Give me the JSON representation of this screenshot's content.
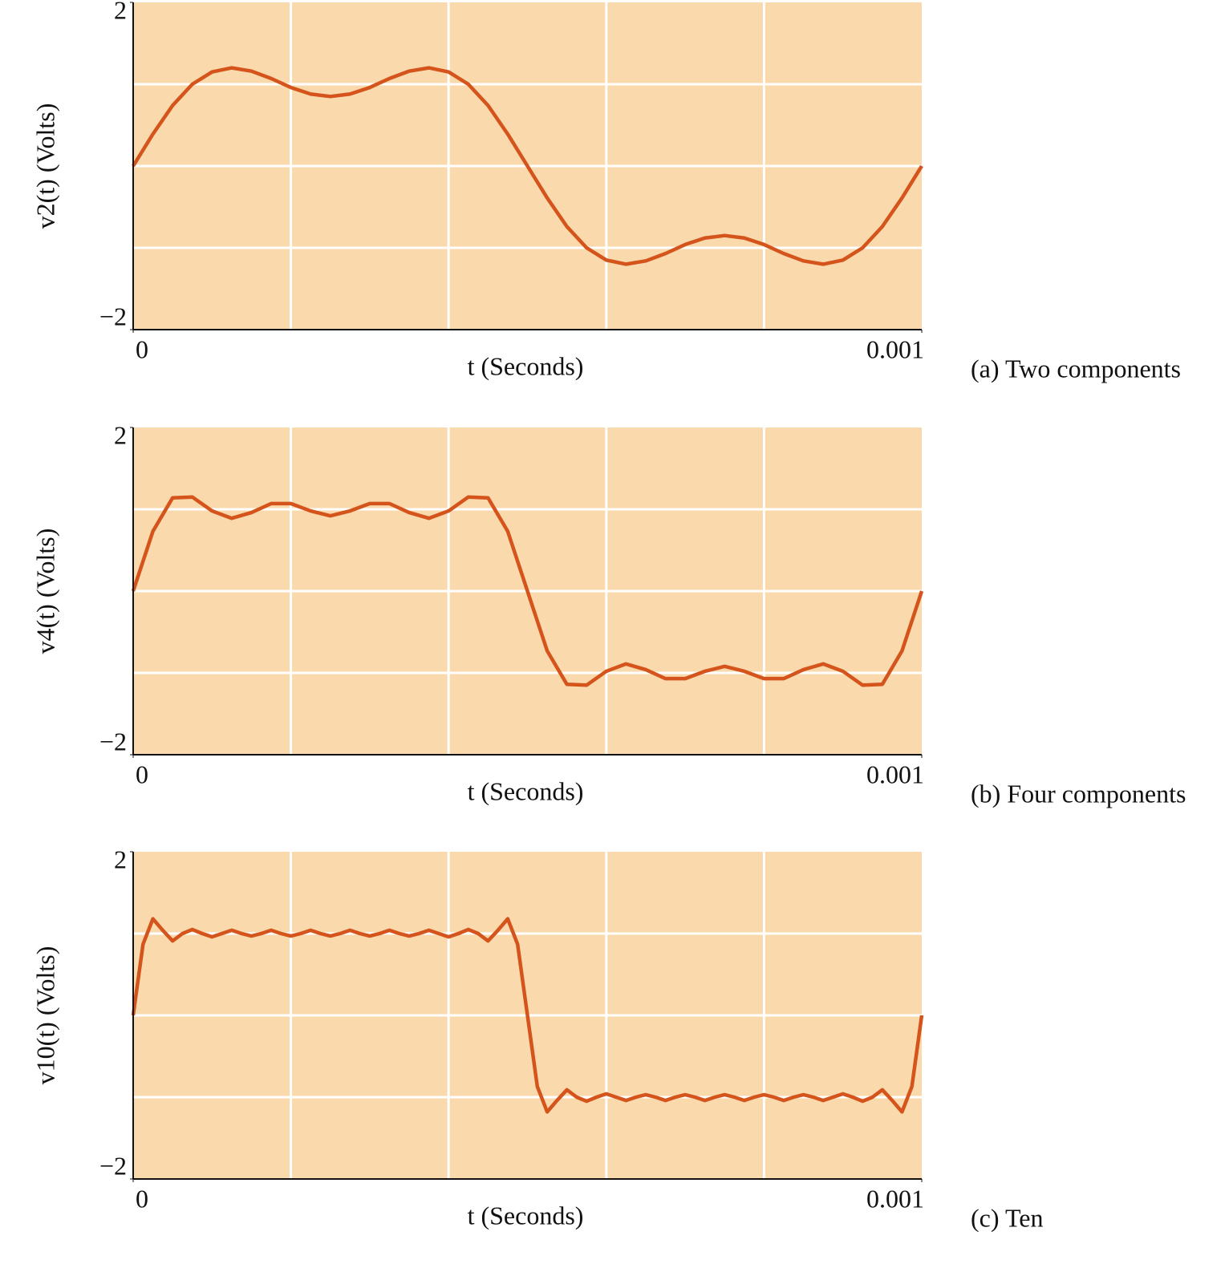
{
  "chart_data": [
    {
      "type": "line",
      "ylabel": "v2(t) (Volts)",
      "xlabel": "t (Seconds)",
      "caption": "(a) Two components",
      "xlim": [
        0,
        0.001
      ],
      "ylim": [
        -2,
        2
      ],
      "xticks": [
        0,
        0.001
      ],
      "yticks": [
        {
          "value": -2,
          "label": "−2"
        },
        2
      ],
      "xgrid": [
        0.0002,
        0.0004,
        0.0006,
        0.0008
      ],
      "ygrid": [
        -1,
        0,
        1
      ],
      "grid": true,
      "series": [
        {
          "color": "#d4541c",
          "x": [
            0,
            2.5e-05,
            5e-05,
            7.5e-05,
            0.0001,
            0.000125,
            0.00015,
            0.000175,
            0.0002,
            0.000225,
            0.00025,
            0.000275,
            0.0003,
            0.000325,
            0.00035,
            0.000375,
            0.0004,
            0.000425,
            0.00045,
            0.000475,
            0.0005,
            0.000525,
            0.00055,
            0.000575,
            0.0006,
            0.000625,
            0.00065,
            0.000675,
            0.0007,
            0.000725,
            0.00075,
            0.000775,
            0.0008,
            0.000825,
            0.00085,
            0.000875,
            0.0009,
            0.000925,
            0.00095,
            0.000975,
            0.001
          ],
          "values": [
            0,
            0.39,
            0.74,
            1.0,
            1.15,
            1.2,
            1.16,
            1.07,
            0.96,
            0.88,
            0.85,
            0.88,
            0.96,
            1.07,
            1.16,
            1.2,
            1.15,
            1.0,
            0.74,
            0.39,
            0,
            -0.39,
            -0.74,
            -1.0,
            -1.15,
            -1.2,
            -1.16,
            -1.07,
            -0.96,
            -0.88,
            -0.85,
            -0.88,
            -0.96,
            -1.07,
            -1.16,
            -1.2,
            -1.15,
            -1.0,
            -0.74,
            -0.39,
            0
          ]
        }
      ]
    },
    {
      "type": "line",
      "ylabel": "v4(t) (Volts)",
      "xlabel": "t (Seconds)",
      "caption": "(b) Four components",
      "xlim": [
        0,
        0.001
      ],
      "ylim": [
        -2,
        2
      ],
      "xticks": [
        0,
        0.001
      ],
      "yticks": [
        {
          "value": -2,
          "label": "−2"
        },
        2
      ],
      "xgrid": [
        0.0002,
        0.0004,
        0.0006,
        0.0008
      ],
      "ygrid": [
        -1,
        0,
        1
      ],
      "grid": true,
      "series": [
        {
          "color": "#d4541c",
          "x": [
            0,
            2.5e-05,
            5e-05,
            7.5e-05,
            0.0001,
            0.000125,
            0.00015,
            0.000175,
            0.0002,
            0.000225,
            0.00025,
            0.000275,
            0.0003,
            0.000325,
            0.00035,
            0.000375,
            0.0004,
            0.000425,
            0.00045,
            0.000475,
            0.0005,
            0.000525,
            0.00055,
            0.000575,
            0.0006,
            0.000625,
            0.00065,
            0.000675,
            0.0007,
            0.000725,
            0.00075,
            0.000775,
            0.0008,
            0.000825,
            0.00085,
            0.000875,
            0.0009,
            0.000925,
            0.00095,
            0.000975,
            0.001
          ],
          "values": [
            0,
            0.73,
            1.14,
            1.15,
            0.98,
            0.89,
            0.96,
            1.07,
            1.07,
            0.98,
            0.92,
            0.98,
            1.07,
            1.07,
            0.96,
            0.89,
            0.98,
            1.15,
            1.14,
            0.73,
            0,
            -0.73,
            -1.14,
            -1.15,
            -0.98,
            -0.89,
            -0.96,
            -1.07,
            -1.07,
            -0.98,
            -0.92,
            -0.98,
            -1.07,
            -1.07,
            -0.96,
            -0.89,
            -0.98,
            -1.15,
            -1.14,
            -0.73,
            0
          ]
        }
      ]
    },
    {
      "type": "line",
      "ylabel": "v10(t) (Volts)",
      "xlabel": "t (Seconds)",
      "caption": "(c) Ten",
      "xlim": [
        0,
        0.001
      ],
      "ylim": [
        -2,
        2
      ],
      "xticks": [
        0,
        0.001
      ],
      "yticks": [
        {
          "value": -2,
          "label": "−2"
        },
        2
      ],
      "xgrid": [
        0.0002,
        0.0004,
        0.0006,
        0.0008
      ],
      "ygrid": [
        -1,
        0,
        1
      ],
      "grid": true,
      "series": [
        {
          "color": "#d4541c",
          "x": [
            0,
            1.25e-05,
            2.5e-05,
            3.75e-05,
            5e-05,
            6.25e-05,
            7.5e-05,
            8.75e-05,
            0.0001,
            0.0001125,
            0.000125,
            0.0001375,
            0.00015,
            0.0001625,
            0.000175,
            0.0001875,
            0.0002,
            0.0002125,
            0.000225,
            0.0002375,
            0.00025,
            0.0002625,
            0.000275,
            0.0002875,
            0.0003,
            0.0003125,
            0.000325,
            0.0003375,
            0.00035,
            0.0003625,
            0.000375,
            0.0003875,
            0.0004,
            0.0004125,
            0.000425,
            0.0004375,
            0.00045,
            0.0004625,
            0.000475,
            0.0004875,
            0.0005,
            0.0005125,
            0.000525,
            0.0005375,
            0.00055,
            0.0005625,
            0.000575,
            0.0005875,
            0.0006,
            0.0006125,
            0.000625,
            0.0006375,
            0.00065,
            0.0006625,
            0.000675,
            0.0006875,
            0.0007,
            0.0007125,
            0.000725,
            0.0007375,
            0.00075,
            0.0007625,
            0.000775,
            0.0007875,
            0.0008,
            0.0008125,
            0.000825,
            0.0008375,
            0.00085,
            0.0008625,
            0.000875,
            0.0008875,
            0.0009,
            0.0009125,
            0.000925,
            0.0009375,
            0.00095,
            0.0009625,
            0.000975,
            0.0009875,
            0.001
          ],
          "values": [
            0,
            0.87,
            1.18,
            1.04,
            0.91,
            1,
            1.05,
            1,
            0.96,
            1,
            1.04,
            1,
            0.97,
            1,
            1.04,
            1,
            0.97,
            1,
            1.04,
            1,
            0.97,
            1,
            1.04,
            1,
            0.97,
            1,
            1.04,
            1,
            0.97,
            1,
            1.04,
            1,
            0.96,
            1,
            1.05,
            1,
            0.91,
            1.04,
            1.18,
            0.87,
            0,
            -0.87,
            -1.18,
            -1.04,
            -0.91,
            -1,
            -1.05,
            -1,
            -0.96,
            -1,
            -1.04,
            -1,
            -0.97,
            -1,
            -1.04,
            -1,
            -0.97,
            -1,
            -1.04,
            -1,
            -0.97,
            -1,
            -1.04,
            -1,
            -0.97,
            -1,
            -1.04,
            -1,
            -0.97,
            -1,
            -1.04,
            -1,
            -0.96,
            -1,
            -1.05,
            -1,
            -0.91,
            -1.04,
            -1.18,
            -0.87,
            0
          ]
        }
      ]
    }
  ]
}
